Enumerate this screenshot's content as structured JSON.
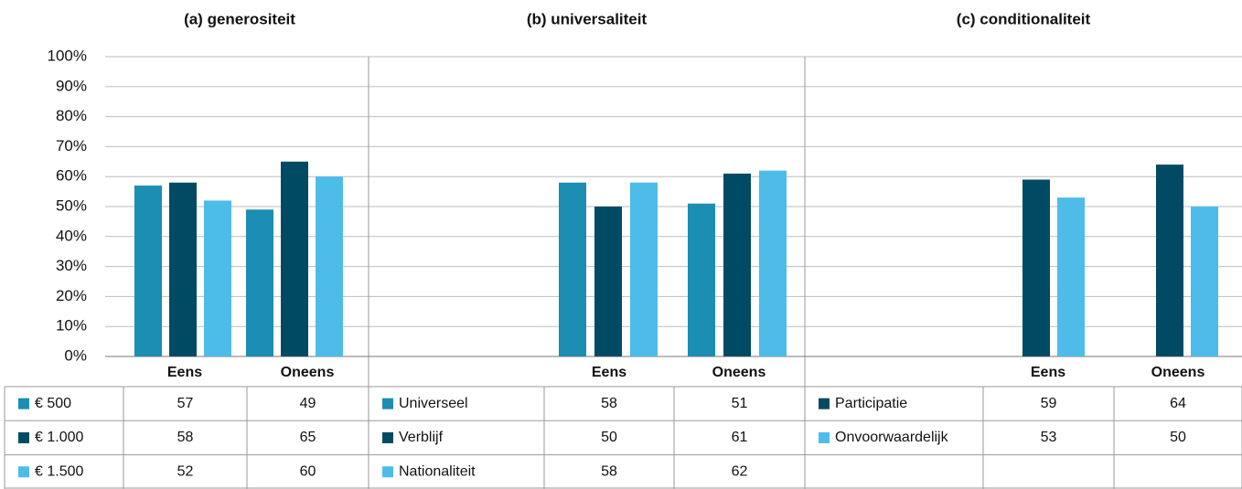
{
  "chart_data": [
    {
      "type": "bar",
      "title": "(a) generositeit",
      "categories": [
        "Eens",
        "Oneens"
      ],
      "series": [
        {
          "name": "€ 500",
          "color": "#1c8db3",
          "values": [
            57,
            49
          ]
        },
        {
          "name": "€ 1.000",
          "color": "#004b63",
          "values": [
            58,
            65
          ]
        },
        {
          "name": "€ 1.500",
          "color": "#4dbce8",
          "values": [
            52,
            60
          ]
        }
      ],
      "ylim": [
        0,
        100
      ],
      "yticks": [
        {
          "value": 0,
          "label": "0%"
        },
        {
          "value": 10,
          "label": "10%"
        },
        {
          "value": 20,
          "label": "20%"
        },
        {
          "value": 30,
          "label": "30%"
        },
        {
          "value": 40,
          "label": "40%"
        },
        {
          "value": 50,
          "label": "50%"
        },
        {
          "value": 60,
          "label": "60%"
        },
        {
          "value": 70,
          "label": "70%"
        },
        {
          "value": 80,
          "label": "80%"
        },
        {
          "value": 90,
          "label": "90%"
        },
        {
          "value": 100,
          "label": "100%"
        }
      ],
      "grid": true
    },
    {
      "type": "bar",
      "title": "(b) universaliteit",
      "categories": [
        "Eens",
        "Oneens"
      ],
      "series": [
        {
          "name": "Universeel",
          "color": "#1c8db3",
          "values": [
            58,
            51
          ]
        },
        {
          "name": "Verblijf",
          "color": "#004b63",
          "values": [
            50,
            61
          ]
        },
        {
          "name": "Nationaliteit",
          "color": "#4dbce8",
          "values": [
            58,
            62
          ]
        }
      ],
      "ylim": [
        0,
        100
      ]
    },
    {
      "type": "bar",
      "title": "(c) conditionaliteit",
      "categories": [
        "Eens",
        "Oneens"
      ],
      "series": [
        {
          "name": "Participatie",
          "color": "#004b63",
          "values": [
            59,
            64
          ]
        },
        {
          "name": "Onvoorwaardelijk",
          "color": "#4dbce8",
          "values": [
            53,
            50
          ]
        }
      ],
      "ylim": [
        0,
        100
      ]
    }
  ]
}
